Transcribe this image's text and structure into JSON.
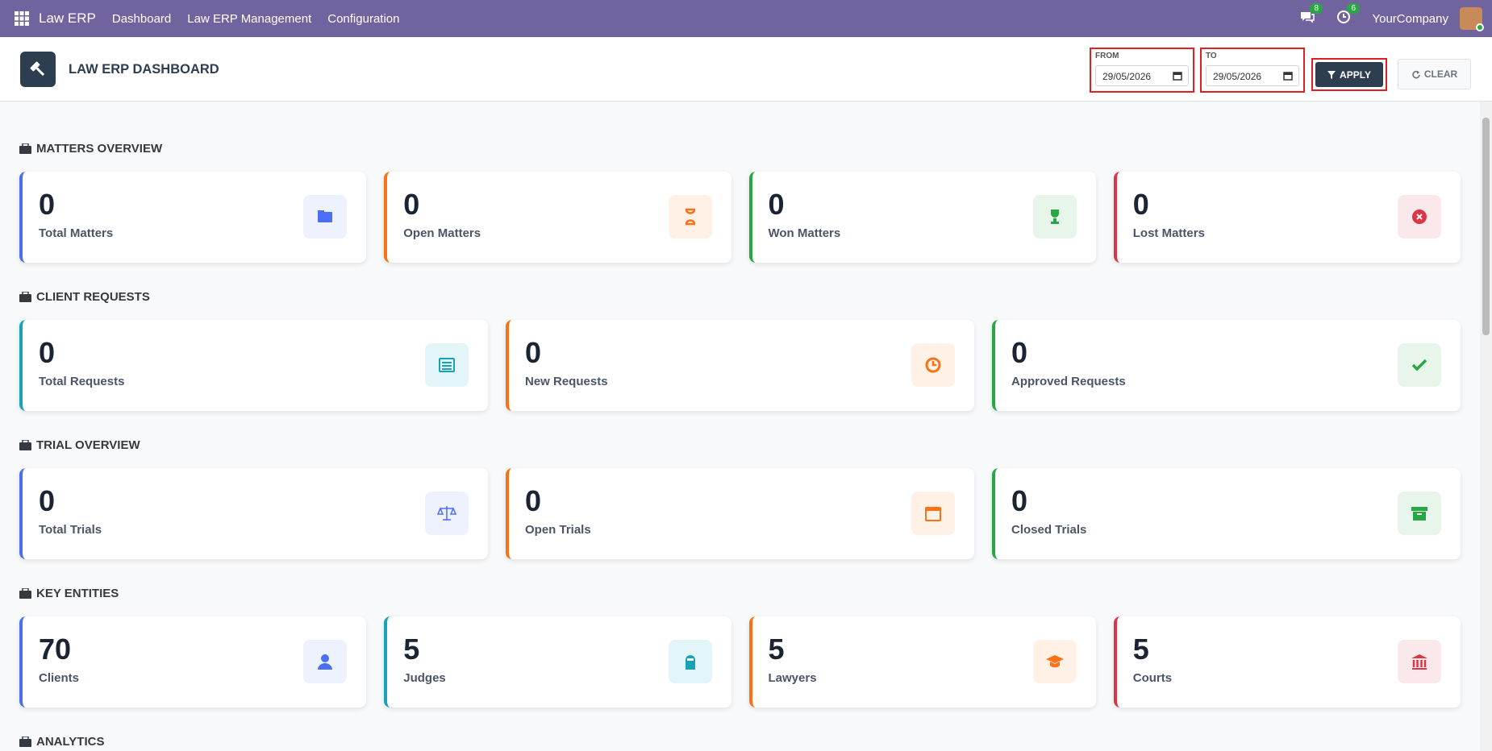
{
  "navbar": {
    "app": "Law ERP",
    "menu": [
      "Dashboard",
      "Law ERP Management",
      "Configuration"
    ],
    "messages_badge": 8,
    "activity_badge": 6,
    "company": "YourCompany"
  },
  "header": {
    "title": "LAW ERP DASHBOARD",
    "from_label": "FROM",
    "from_date": "29/05/2026",
    "to_label": "TO",
    "to_date": "29/05/2026",
    "apply": "APPLY",
    "clear": "CLEAR"
  },
  "sections": [
    {
      "title": "MATTERS OVERVIEW",
      "cards": [
        {
          "value": 0,
          "label": "Total Matters"
        },
        {
          "value": 0,
          "label": "Open Matters"
        },
        {
          "value": 0,
          "label": "Won Matters"
        },
        {
          "value": 0,
          "label": "Lost Matters"
        }
      ]
    },
    {
      "title": "CLIENT REQUESTS",
      "cards": [
        {
          "value": 0,
          "label": "Total Requests"
        },
        {
          "value": 0,
          "label": "New Requests"
        },
        {
          "value": 0,
          "label": "Approved Requests"
        }
      ]
    },
    {
      "title": "TRIAL OVERVIEW",
      "cards": [
        {
          "value": 0,
          "label": "Total Trials"
        },
        {
          "value": 0,
          "label": "Open Trials"
        },
        {
          "value": 0,
          "label": "Closed Trials"
        }
      ]
    },
    {
      "title": "KEY ENTITIES",
      "cards": [
        {
          "value": 70,
          "label": "Clients"
        },
        {
          "value": 5,
          "label": "Judges"
        },
        {
          "value": 5,
          "label": "Lawyers"
        },
        {
          "value": 5,
          "label": "Courts"
        }
      ]
    },
    {
      "title": "ANALYTICS",
      "cards": []
    }
  ]
}
